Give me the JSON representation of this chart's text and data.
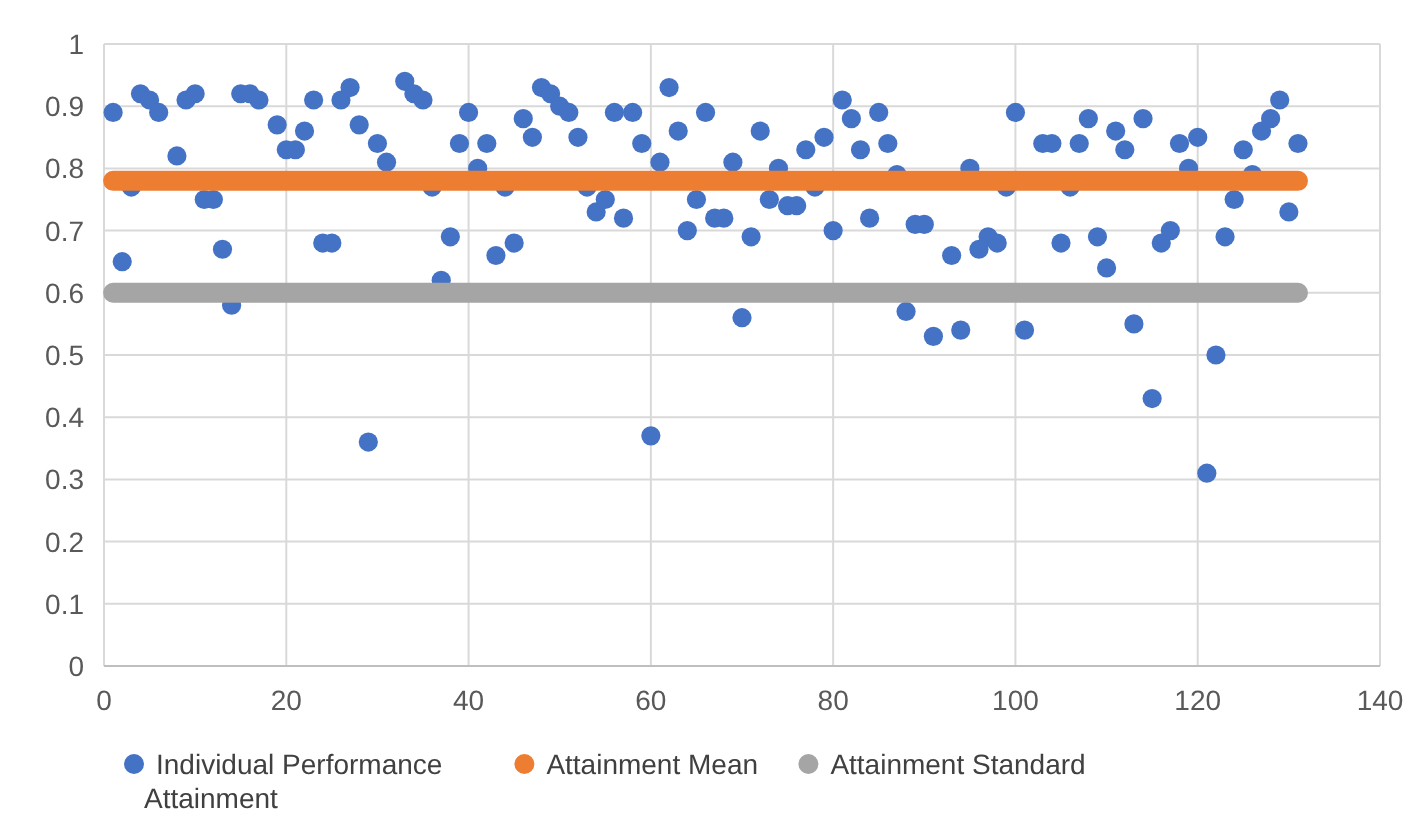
{
  "chart_data": {
    "type": "scatter",
    "xlim": [
      0,
      140
    ],
    "xticks": [
      0,
      20,
      40,
      60,
      80,
      100,
      120,
      140
    ],
    "ylim": [
      0,
      1
    ],
    "yticks": [
      0,
      0.1,
      0.2,
      0.3,
      0.4,
      0.5,
      0.6,
      0.7,
      0.8,
      0.9,
      1
    ],
    "grid": true,
    "legend": "bottom",
    "marker": "circle",
    "series": [
      {
        "name": "Individual Performance Attainment",
        "color": "#4472c4",
        "x": [
          1,
          2,
          3,
          4,
          5,
          6,
          8,
          9,
          10,
          11,
          12,
          13,
          14,
          15,
          16,
          17,
          19,
          20,
          21,
          22,
          23,
          24,
          25,
          26,
          27,
          28,
          29,
          30,
          31,
          33,
          34,
          35,
          36,
          37,
          38,
          39,
          40,
          41,
          42,
          43,
          44,
          45,
          46,
          47,
          48,
          49,
          50,
          51,
          52,
          53,
          54,
          55,
          56,
          57,
          58,
          59,
          60,
          61,
          62,
          63,
          64,
          65,
          66,
          67,
          68,
          69,
          70,
          71,
          72,
          73,
          74,
          75,
          76,
          77,
          78,
          79,
          80,
          81,
          82,
          83,
          84,
          85,
          86,
          87,
          88,
          89,
          90,
          91,
          93,
          94,
          95,
          96,
          97,
          98,
          99,
          100,
          101,
          103,
          104,
          105,
          106,
          107,
          108,
          109,
          110,
          111,
          112,
          113,
          114,
          115,
          116,
          117,
          118,
          119,
          120,
          121,
          122,
          123,
          124,
          125,
          126,
          127,
          128,
          129,
          130,
          131
        ],
        "values": [
          0.89,
          0.65,
          0.77,
          0.92,
          0.91,
          0.89,
          0.82,
          0.91,
          0.92,
          0.75,
          0.75,
          0.67,
          0.58,
          0.92,
          0.92,
          0.91,
          0.87,
          0.83,
          0.83,
          0.86,
          0.91,
          0.68,
          0.68,
          0.91,
          0.93,
          0.87,
          0.36,
          0.84,
          0.81,
          0.94,
          0.92,
          0.91,
          0.77,
          0.62,
          0.69,
          0.84,
          0.89,
          0.8,
          0.84,
          0.66,
          0.77,
          0.68,
          0.88,
          0.85,
          0.93,
          0.92,
          0.9,
          0.89,
          0.85,
          0.77,
          0.73,
          0.75,
          0.89,
          0.72,
          0.89,
          0.84,
          0.37,
          0.81,
          0.93,
          0.86,
          0.7,
          0.75,
          0.89,
          0.72,
          0.72,
          0.81,
          0.56,
          0.69,
          0.86,
          0.75,
          0.8,
          0.74,
          0.74,
          0.83,
          0.77,
          0.85,
          0.7,
          0.91,
          0.88,
          0.83,
          0.72,
          0.89,
          0.84,
          0.79,
          0.57,
          0.71,
          0.71,
          0.53,
          0.66,
          0.54,
          0.8,
          0.67,
          0.69,
          0.68,
          0.77,
          0.89,
          0.54,
          0.84,
          0.84,
          0.68,
          0.77,
          0.84,
          0.88,
          0.69,
          0.64,
          0.86,
          0.83,
          0.55,
          0.88,
          0.43,
          0.68,
          0.7,
          0.84,
          0.8,
          0.85,
          0.31,
          0.5,
          0.69,
          0.75,
          0.83,
          0.79,
          0.86,
          0.88,
          0.91,
          0.73,
          0.84
        ]
      },
      {
        "name": "Attainment Mean",
        "type": "line",
        "marker": "none",
        "color": "#ed7d31",
        "x": [
          1,
          131
        ],
        "values": [
          0.78,
          0.78
        ]
      },
      {
        "name": "Attainment Standard",
        "type": "line",
        "marker": "none",
        "color": "#a5a5a5",
        "x": [
          1,
          131
        ],
        "values": [
          0.6,
          0.6
        ]
      }
    ]
  }
}
